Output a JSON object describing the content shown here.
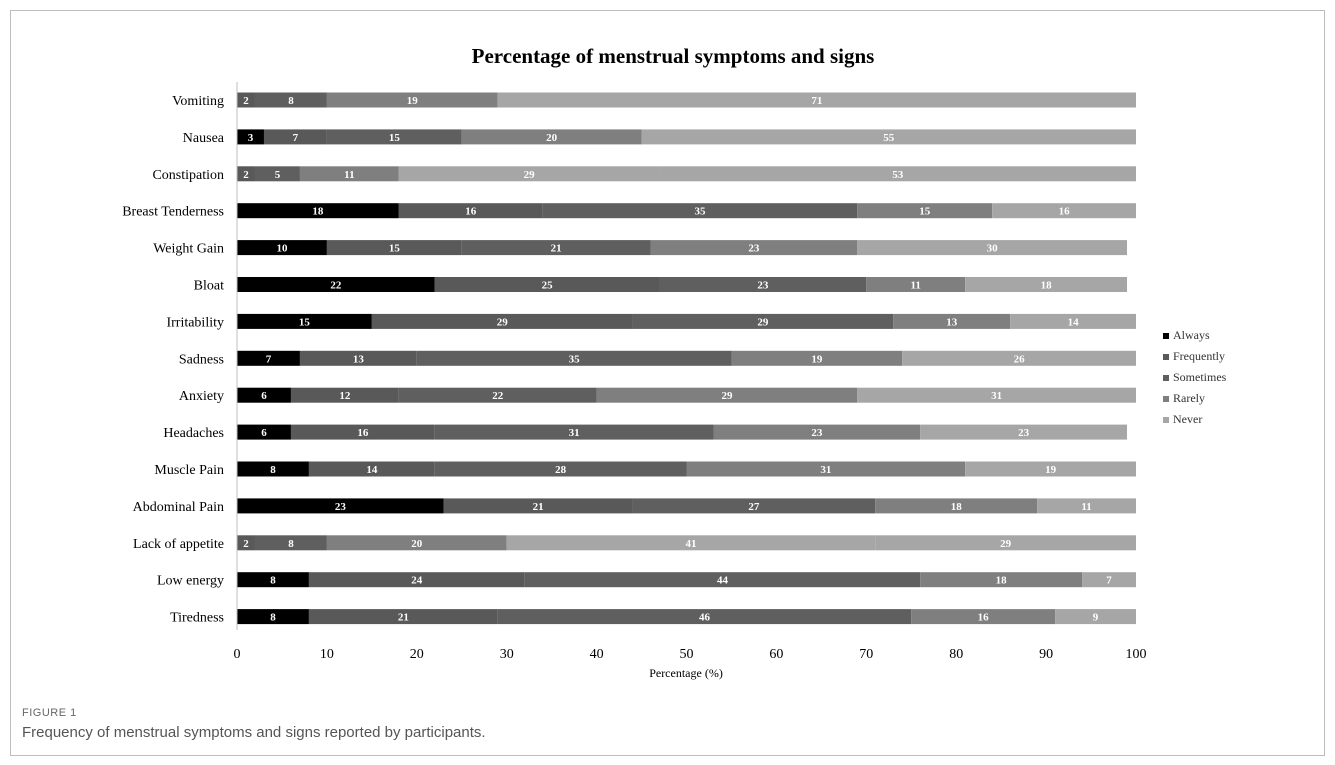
{
  "figure": {
    "label": "FIGURE 1",
    "caption": "Frequency of menstrual symptoms and signs reported by participants."
  },
  "chart_data": {
    "type": "bar",
    "orientation": "horizontal",
    "stacked": true,
    "title": "Percentage of menstrual symptoms and signs",
    "xlabel": "Percentage (%)",
    "ylabel": "",
    "xlim": [
      0,
      100
    ],
    "xticks": [
      0,
      10,
      20,
      30,
      40,
      50,
      60,
      70,
      80,
      90,
      100
    ],
    "grid": false,
    "legend_position": "right",
    "categories": [
      "Vomiting",
      "Nausea",
      "Constipation",
      "Breast Tenderness",
      "Weight Gain",
      "Bloat",
      "Irritability",
      "Sadness",
      "Anxiety",
      "Headaches",
      "Muscle Pain",
      "Abdominal Pain",
      "Lack of appetite",
      "Low energy",
      "Tiredness"
    ],
    "series": [
      {
        "name": "Always",
        "color": "#000000",
        "values": [
          0,
          3,
          0,
          18,
          10,
          22,
          15,
          7,
          6,
          6,
          8,
          23,
          0,
          8,
          8
        ]
      },
      {
        "name": "Frequently",
        "color": "#595959",
        "values": [
          2,
          7,
          2,
          16,
          15,
          25,
          29,
          13,
          12,
          16,
          14,
          21,
          2,
          24,
          21
        ]
      },
      {
        "name": "Sometimes",
        "color": "#5f5f5f",
        "values": [
          8,
          15,
          5,
          35,
          21,
          23,
          29,
          35,
          22,
          31,
          28,
          27,
          8,
          44,
          46
        ]
      },
      {
        "name": "Rarely",
        "color": "#7f7f7f",
        "values": [
          19,
          20,
          11,
          15,
          23,
          11,
          13,
          19,
          29,
          23,
          31,
          18,
          20,
          18,
          16
        ]
      },
      {
        "name": "Never",
        "color": "#a6a6a6",
        "values": [
          71,
          55,
          29,
          16,
          30,
          18,
          14,
          26,
          31,
          23,
          19,
          11,
          41,
          7,
          9
        ]
      }
    ],
    "extra_segments": {
      "Constipation": [
        53
      ],
      "Lack of appetite": [
        29
      ]
    }
  }
}
